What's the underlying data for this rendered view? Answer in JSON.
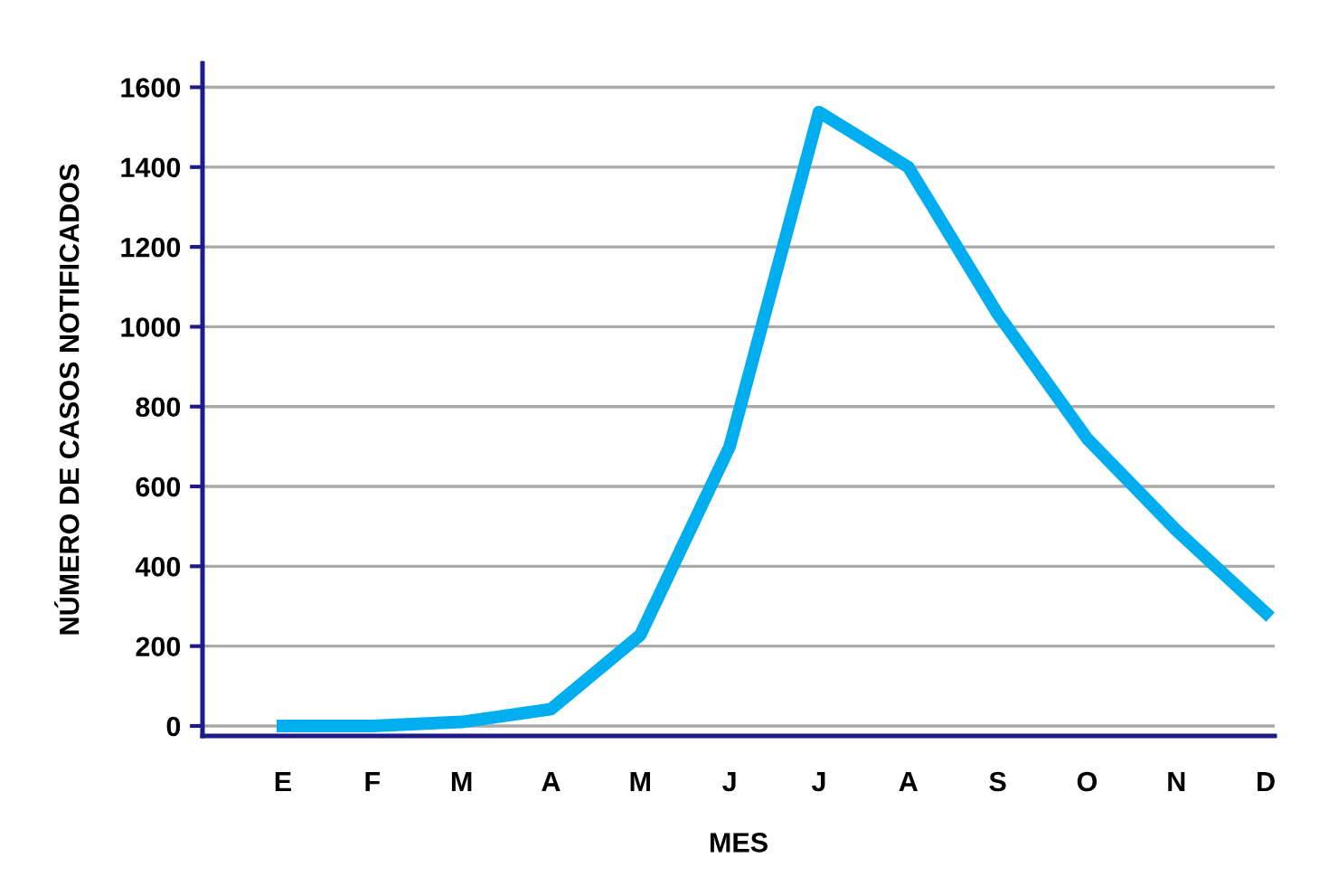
{
  "chart_data": {
    "type": "line",
    "xlabel": "MES",
    "ylabel": "NÚMERO DE CASOS NOTIFICADOS",
    "categories": [
      "E",
      "F",
      "M",
      "A",
      "M",
      "J",
      "J",
      "A",
      "S",
      "O",
      "N",
      "D"
    ],
    "series": [
      {
        "color": "#00aeef",
        "values": [
          0,
          0,
          10,
          42,
          228,
          700,
          1538,
          1400,
          1032,
          720,
          490,
          283
        ]
      }
    ],
    "ylim": [
      -25,
      1660
    ],
    "yticks": [
      0,
      200,
      400,
      600,
      800,
      1000,
      1200,
      1400,
      1600
    ],
    "grid": "y",
    "marker": "none",
    "line_style": "solid"
  }
}
